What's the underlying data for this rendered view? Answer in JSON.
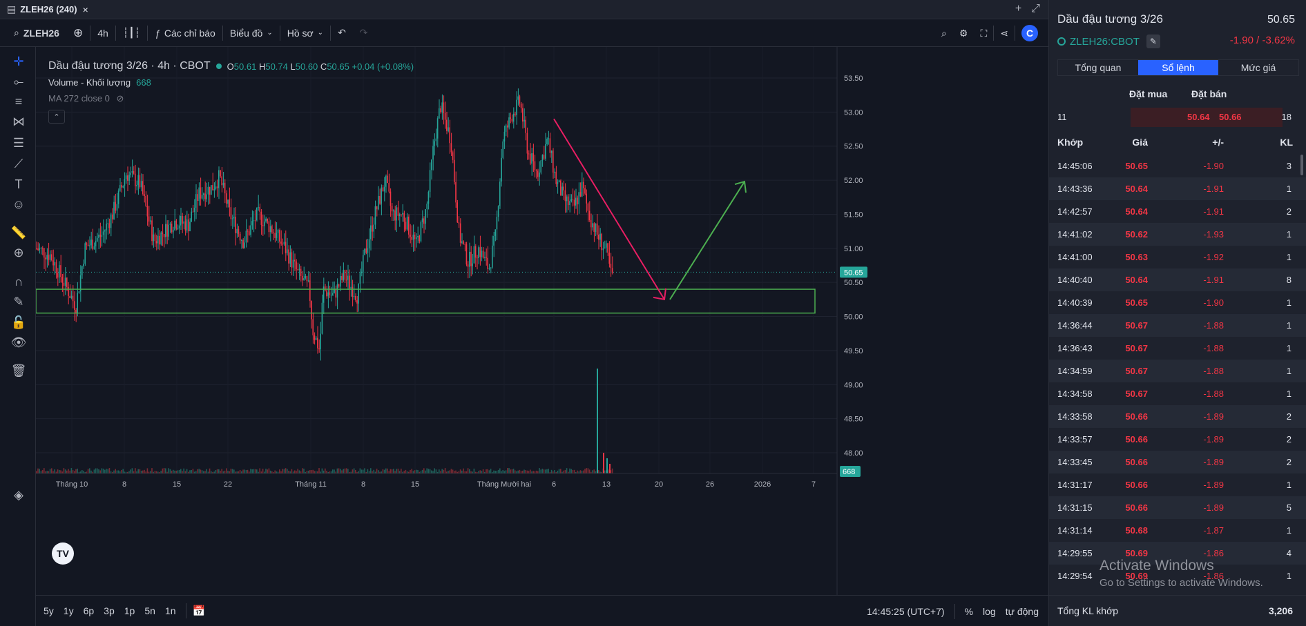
{
  "titlebar": {
    "title": "ZLEH26 (240)",
    "close_icon": "×"
  },
  "toolbar": {
    "symbol": "ZLEH26",
    "interval": "4h",
    "indicators_label": "Các chỉ báo",
    "chart_label": "Biểu đồ",
    "profile_label": "Hồ sơ"
  },
  "legend": {
    "title": "Dầu đậu tương 3/26 · 4h · CBOT",
    "o_label": "O",
    "o": "50.61",
    "h_label": "H",
    "h": "50.74",
    "l_label": "L",
    "l": "50.60",
    "c_label": "C",
    "c": "50.65",
    "change": "+0.04 (+0.08%)",
    "volume_label": "Volume - Khối lượng",
    "volume_value": "668",
    "ma_label": "MA 272 close 0"
  },
  "chart_data": {
    "type": "candlestick",
    "price_axis_ticks": [
      "53.50",
      "53.00",
      "52.50",
      "52.00",
      "51.50",
      "51.00",
      "50.50",
      "50.00",
      "49.50",
      "49.00",
      "48.50",
      "48.00"
    ],
    "ylim": [
      47.8,
      53.6
    ],
    "time_axis_ticks": [
      "Tháng 10",
      "8",
      "15",
      "22",
      "Tháng 11",
      "8",
      "15",
      "Tháng Mười hai",
      "6",
      "13",
      "20",
      "26",
      "2026",
      "7"
    ],
    "last_price": "50.65",
    "last_volume": "668",
    "support_zone": [
      50.05,
      50.4
    ],
    "down_arrow": {
      "from": [
        52.9,
        "Dec 6"
      ],
      "to": [
        50.25,
        "Dec 20"
      ]
    },
    "up_arrow": {
      "from": [
        50.25,
        "Dec 20"
      ],
      "to": [
        51.98,
        "Dec 29"
      ]
    }
  },
  "bottombar": {
    "timeframes": [
      "5y",
      "1y",
      "6p",
      "3p",
      "1p",
      "5n",
      "1n"
    ],
    "clock": "14:45:25 (UTC+7)",
    "percent": "%",
    "log": "log",
    "auto": "tự động"
  },
  "panel": {
    "name": "Dầu đậu tương 3/26",
    "price": "50.65",
    "symbol": "ZLEH26:CBOT",
    "change": "-1.90 / -3.62%",
    "tabs": [
      "Tổng quan",
      "Sổ lệnh",
      "Mức giá"
    ],
    "orderbook": {
      "bid_header": "Đặt mua",
      "ask_header": "Đặt bán",
      "bid_qty": "11",
      "bid": "50.64",
      "ask": "50.66",
      "ask_qty": "18"
    },
    "trades_header": {
      "time": "Khớp",
      "price": "Giá",
      "change": "+/-",
      "qty": "KL"
    },
    "trades": [
      {
        "t": "14:45:06",
        "p": "50.65",
        "c": "-1.90",
        "k": "3"
      },
      {
        "t": "14:43:36",
        "p": "50.64",
        "c": "-1.91",
        "k": "1"
      },
      {
        "t": "14:42:57",
        "p": "50.64",
        "c": "-1.91",
        "k": "2"
      },
      {
        "t": "14:41:02",
        "p": "50.62",
        "c": "-1.93",
        "k": "1"
      },
      {
        "t": "14:41:00",
        "p": "50.63",
        "c": "-1.92",
        "k": "1"
      },
      {
        "t": "14:40:40",
        "p": "50.64",
        "c": "-1.91",
        "k": "8"
      },
      {
        "t": "14:40:39",
        "p": "50.65",
        "c": "-1.90",
        "k": "1"
      },
      {
        "t": "14:36:44",
        "p": "50.67",
        "c": "-1.88",
        "k": "1"
      },
      {
        "t": "14:36:43",
        "p": "50.67",
        "c": "-1.88",
        "k": "1"
      },
      {
        "t": "14:34:59",
        "p": "50.67",
        "c": "-1.88",
        "k": "1"
      },
      {
        "t": "14:34:58",
        "p": "50.67",
        "c": "-1.88",
        "k": "1"
      },
      {
        "t": "14:33:58",
        "p": "50.66",
        "c": "-1.89",
        "k": "2"
      },
      {
        "t": "14:33:57",
        "p": "50.66",
        "c": "-1.89",
        "k": "2"
      },
      {
        "t": "14:33:45",
        "p": "50.66",
        "c": "-1.89",
        "k": "2"
      },
      {
        "t": "14:31:17",
        "p": "50.66",
        "c": "-1.89",
        "k": "1"
      },
      {
        "t": "14:31:15",
        "p": "50.66",
        "c": "-1.89",
        "k": "5"
      },
      {
        "t": "14:31:14",
        "p": "50.68",
        "c": "-1.87",
        "k": "1"
      },
      {
        "t": "14:29:55",
        "p": "50.69",
        "c": "-1.86",
        "k": "4"
      },
      {
        "t": "14:29:54",
        "p": "50.69",
        "c": "-1.86",
        "k": "1"
      }
    ],
    "total_label": "Tổng KL khớp",
    "total_value": "3,206"
  },
  "watermark": {
    "line1": "Activate Windows",
    "line2": "Go to Settings to activate Windows."
  },
  "colors": {
    "up": "#26a69a",
    "down": "#f23645",
    "zone": "#4caf50",
    "arrow_down": "#e91e63",
    "arrow_up": "#4caf50",
    "accent": "#2962ff"
  }
}
